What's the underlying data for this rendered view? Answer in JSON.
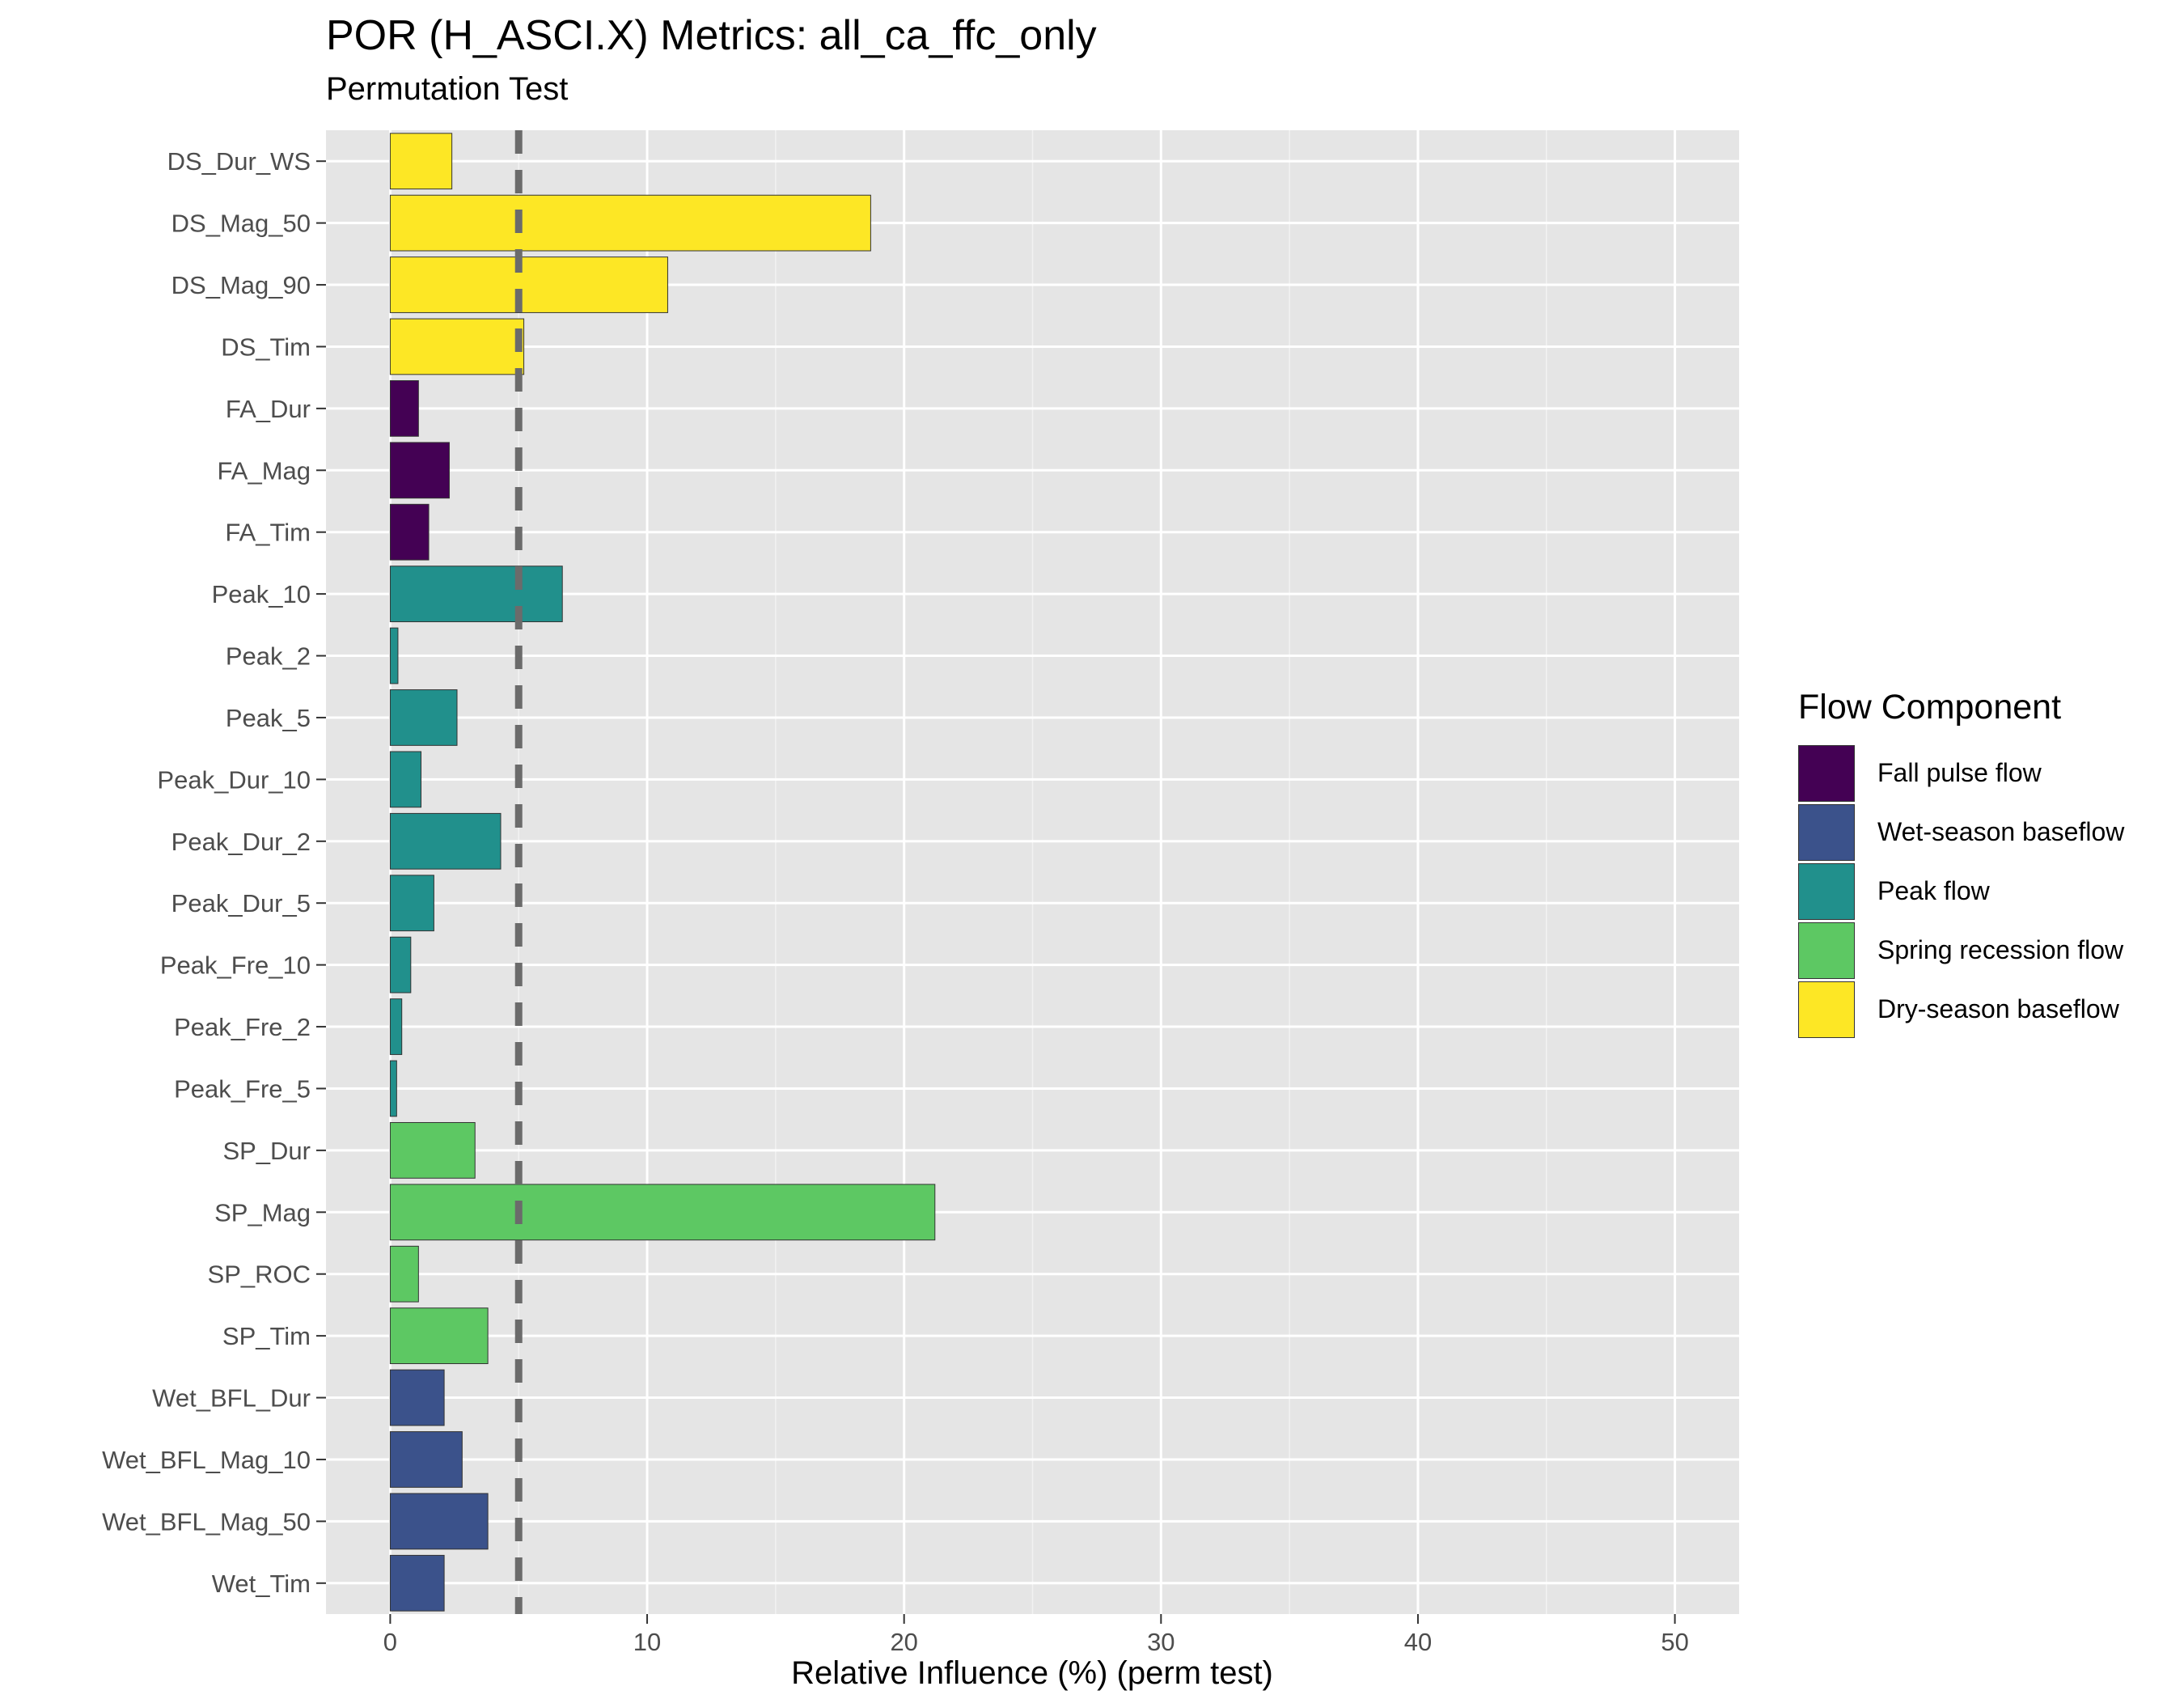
{
  "chart_data": {
    "type": "bar",
    "orientation": "horizontal",
    "title": "POR (H_ASCI.X) Metrics: all_ca_ffc_only",
    "subtitle": "Permutation Test",
    "xlabel": "Relative Influence (%) (perm test)",
    "ylabel": "",
    "xlim": [
      -2.5,
      52.5
    ],
    "xticks": [
      0,
      10,
      20,
      30,
      40,
      50
    ],
    "reference_line": {
      "x": 5,
      "style": "dashed",
      "color": "#6b6b6b"
    },
    "grid": true,
    "panel_background": "#e5e5e5",
    "legend_title": "Flow Component",
    "legend_position": "right",
    "components": [
      {
        "name": "Fall pulse flow",
        "color": "#440154"
      },
      {
        "name": "Wet-season baseflow",
        "color": "#3b528b"
      },
      {
        "name": "Peak flow",
        "color": "#21908c"
      },
      {
        "name": "Spring recession flow",
        "color": "#5dc863"
      },
      {
        "name": "Dry-season baseflow",
        "color": "#fde725"
      }
    ],
    "bars": [
      {
        "label": "DS_Dur_WS",
        "value": 2.4,
        "component": "Dry-season baseflow"
      },
      {
        "label": "DS_Mag_50",
        "value": 18.7,
        "component": "Dry-season baseflow"
      },
      {
        "label": "DS_Mag_90",
        "value": 10.8,
        "component": "Dry-season baseflow"
      },
      {
        "label": "DS_Tim",
        "value": 5.2,
        "component": "Dry-season baseflow"
      },
      {
        "label": "FA_Dur",
        "value": 1.1,
        "component": "Fall pulse flow"
      },
      {
        "label": "FA_Mag",
        "value": 2.3,
        "component": "Fall pulse flow"
      },
      {
        "label": "FA_Tim",
        "value": 1.5,
        "component": "Fall pulse flow"
      },
      {
        "label": "Peak_10",
        "value": 6.7,
        "component": "Peak flow"
      },
      {
        "label": "Peak_2",
        "value": 0.3,
        "component": "Peak flow"
      },
      {
        "label": "Peak_5",
        "value": 2.6,
        "component": "Peak flow"
      },
      {
        "label": "Peak_Dur_10",
        "value": 1.2,
        "component": "Peak flow"
      },
      {
        "label": "Peak_Dur_2",
        "value": 4.3,
        "component": "Peak flow"
      },
      {
        "label": "Peak_Dur_5",
        "value": 1.7,
        "component": "Peak flow"
      },
      {
        "label": "Peak_Fre_10",
        "value": 0.8,
        "component": "Peak flow"
      },
      {
        "label": "Peak_Fre_2",
        "value": 0.45,
        "component": "Peak flow"
      },
      {
        "label": "Peak_Fre_5",
        "value": 0.25,
        "component": "Peak flow"
      },
      {
        "label": "SP_Dur",
        "value": 3.3,
        "component": "Spring recession flow"
      },
      {
        "label": "SP_Mag",
        "value": 21.2,
        "component": "Spring recession flow"
      },
      {
        "label": "SP_ROC",
        "value": 1.1,
        "component": "Spring recession flow"
      },
      {
        "label": "SP_Tim",
        "value": 3.8,
        "component": "Spring recession flow"
      },
      {
        "label": "Wet_BFL_Dur",
        "value": 2.1,
        "component": "Wet-season baseflow"
      },
      {
        "label": "Wet_BFL_Mag_10",
        "value": 2.8,
        "component": "Wet-season baseflow"
      },
      {
        "label": "Wet_BFL_Mag_50",
        "value": 3.8,
        "component": "Wet-season baseflow"
      },
      {
        "label": "Wet_Tim",
        "value": 2.1,
        "component": "Wet-season baseflow"
      }
    ]
  }
}
